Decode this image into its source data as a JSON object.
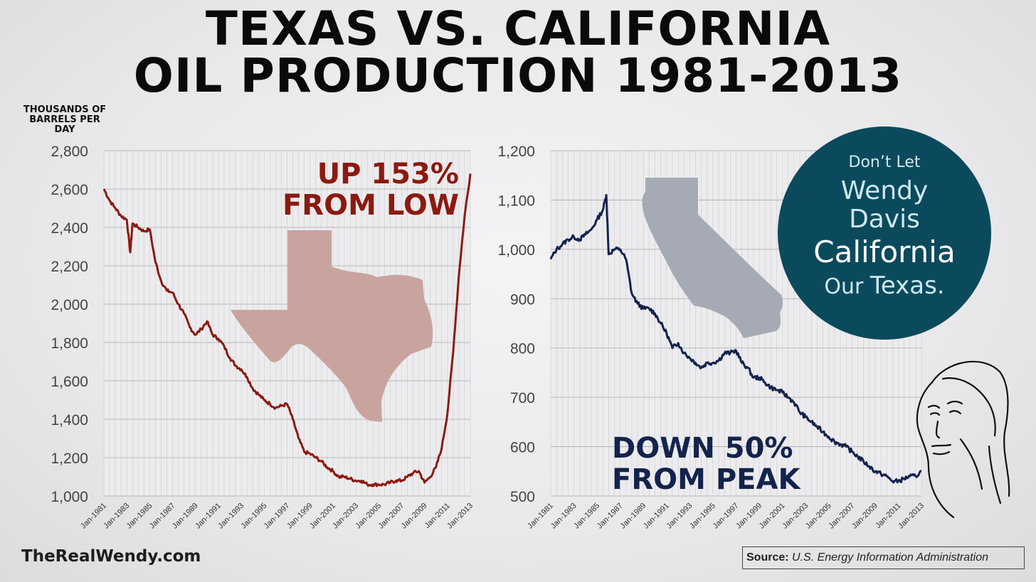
{
  "title_line1": "TEXAS VS. CALIFORNIA",
  "title_line2": "OIL PRODUCTION 1981-2013",
  "units_label": "THOUSANDS OF BARRELS PER DAY",
  "website": "TheRealWendy.com",
  "source": {
    "label": "Source:",
    "value": "U.S. Energy Information Administration"
  },
  "badge": {
    "line1": "Don’t Let",
    "line2": "Wendy",
    "line3": "Davis",
    "line4": "California",
    "line5a": "Our",
    "line5b": "Texas."
  },
  "colors": {
    "texas": "#8b1a10",
    "california": "#13234d",
    "texas_shape": "#c9a49f",
    "california_shape": "#a6aab4",
    "badge": "#0b4a5c"
  },
  "icons": [
    "texas-state-shape",
    "california-state-shape",
    "woman-face-sketch"
  ],
  "chart_data": [
    {
      "type": "line",
      "name": "texas",
      "annotation": [
        "UP 153%",
        "FROM LOW"
      ],
      "x_ticks": [
        "Jan-1981",
        "Jan-1983",
        "Jan-1985",
        "Jan-1987",
        "Jan-1989",
        "Jan-1991",
        "Jan-1993",
        "Jan-1995",
        "Jan-1997",
        "Jan-1999",
        "Jan-2001",
        "Jan-2003",
        "Jan-2005",
        "Jan-2007",
        "Jan-2009",
        "Jan-2011",
        "Jan-2013"
      ],
      "y_ticks": [
        "2,800",
        "2,600",
        "2,400",
        "2,200",
        "2,000",
        "1,800",
        "1,600",
        "1,400",
        "1,200",
        "1,000"
      ],
      "ylim": [
        1000,
        2800
      ],
      "xlim": [
        1981,
        2013
      ],
      "grid": true,
      "x": [
        1981.0,
        1981.5,
        1982.0,
        1982.5,
        1983.0,
        1983.3,
        1983.5,
        1984.0,
        1984.5,
        1985.0,
        1985.5,
        1986.0,
        1986.5,
        1987.0,
        1987.5,
        1988.0,
        1988.5,
        1989.0,
        1989.5,
        1990.0,
        1990.5,
        1991.0,
        1991.5,
        1992.0,
        1992.5,
        1993.0,
        1993.5,
        1994.0,
        1994.5,
        1995.0,
        1995.5,
        1996.0,
        1996.5,
        1997.0,
        1997.5,
        1998.0,
        1998.5,
        1999.0,
        1999.5,
        2000.0,
        2000.5,
        2001.0,
        2001.5,
        2002.0,
        2002.5,
        2003.0,
        2003.5,
        2004.0,
        2004.5,
        2005.0,
        2005.5,
        2006.0,
        2006.5,
        2007.0,
        2007.5,
        2008.0,
        2008.5,
        2009.0,
        2009.5,
        2010.0,
        2010.5,
        2011.0,
        2011.5,
        2012.0,
        2012.5,
        2013.0
      ],
      "y": [
        2600,
        2540,
        2500,
        2460,
        2440,
        2270,
        2420,
        2400,
        2380,
        2390,
        2220,
        2120,
        2070,
        2060,
        2000,
        1950,
        1880,
        1840,
        1870,
        1910,
        1840,
        1820,
        1780,
        1720,
        1680,
        1660,
        1620,
        1560,
        1530,
        1500,
        1480,
        1460,
        1470,
        1480,
        1400,
        1300,
        1230,
        1220,
        1200,
        1180,
        1150,
        1130,
        1100,
        1100,
        1090,
        1080,
        1080,
        1060,
        1060,
        1060,
        1060,
        1070,
        1080,
        1080,
        1100,
        1120,
        1130,
        1070,
        1100,
        1150,
        1250,
        1430,
        1750,
        2150,
        2460,
        2680
      ]
    },
    {
      "type": "line",
      "name": "california",
      "annotation": [
        "DOWN 50%",
        "FROM PEAK"
      ],
      "x_ticks": [
        "Jan-1981",
        "Jan-1983",
        "Jan-1985",
        "Jan-1987",
        "Jan-1989",
        "Jan-1991",
        "Jan-1993",
        "Jan-1995",
        "Jan-1997",
        "Jan-1999",
        "Jan-2001",
        "Jan-2003",
        "Jan-2005",
        "Jan-2007",
        "Jan-2009",
        "Jan-2011",
        "Jan-2013"
      ],
      "y_ticks": [
        "1,200",
        "1,100",
        "1,000",
        "900",
        "800",
        "700",
        "600",
        "500"
      ],
      "ylim": [
        500,
        1200
      ],
      "xlim": [
        1981,
        2013
      ],
      "grid": true,
      "x": [
        1981.0,
        1981.5,
        1982.0,
        1982.5,
        1983.0,
        1983.5,
        1984.0,
        1984.5,
        1985.0,
        1985.5,
        1985.8,
        1986.0,
        1986.5,
        1987.0,
        1987.5,
        1988.0,
        1988.5,
        1989.0,
        1989.5,
        1990.0,
        1990.5,
        1991.0,
        1991.5,
        1992.0,
        1992.5,
        1993.0,
        1993.5,
        1994.0,
        1994.5,
        1995.0,
        1995.5,
        1996.0,
        1996.5,
        1997.0,
        1997.5,
        1998.0,
        1998.5,
        1999.0,
        1999.5,
        2000.0,
        2000.5,
        2001.0,
        2001.5,
        2002.0,
        2002.5,
        2003.0,
        2003.5,
        2004.0,
        2004.5,
        2005.0,
        2005.5,
        2006.0,
        2006.5,
        2007.0,
        2007.5,
        2008.0,
        2008.5,
        2009.0,
        2009.5,
        2010.0,
        2010.5,
        2011.0,
        2011.5,
        2012.0,
        2012.5,
        2013.0
      ],
      "y": [
        980,
        1000,
        1010,
        1020,
        1025,
        1020,
        1030,
        1040,
        1060,
        1080,
        1110,
        990,
        1000,
        1000,
        980,
        910,
        890,
        880,
        880,
        870,
        850,
        830,
        800,
        810,
        790,
        780,
        770,
        760,
        770,
        770,
        775,
        790,
        790,
        795,
        770,
        760,
        740,
        740,
        730,
        720,
        715,
        710,
        700,
        690,
        670,
        660,
        650,
        640,
        630,
        620,
        610,
        605,
        600,
        590,
        580,
        570,
        560,
        550,
        545,
        540,
        530,
        530,
        535,
        540,
        540,
        550
      ]
    }
  ]
}
